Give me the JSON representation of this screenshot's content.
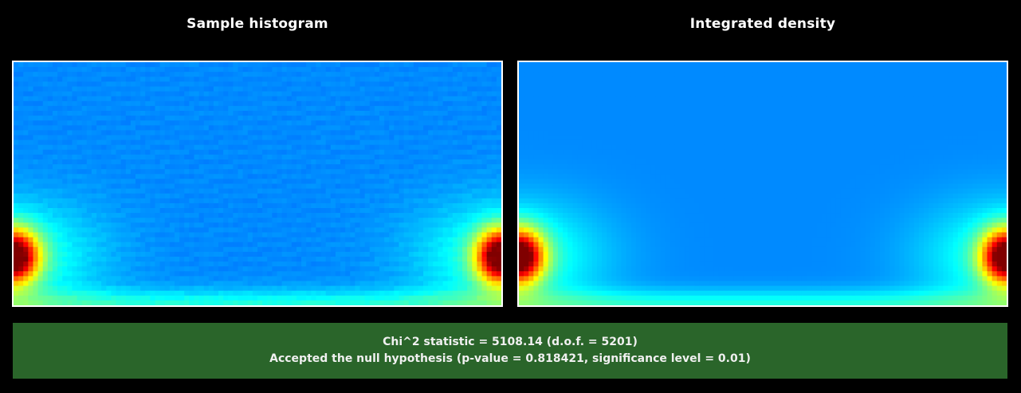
{
  "panels": {
    "left": {
      "title": "Sample histogram"
    },
    "right": {
      "title": "Integrated density"
    }
  },
  "result": {
    "statistic_line": "Chi^2 statistic = 5108.14 (d.o.f. = 5201)",
    "conclusion_line": "Accepted the null hypothesis (p-value = 0.818421, significance level = 0.01)",
    "background_color": "#2a652a"
  },
  "colors": {
    "heatmap_low": "#0000ff",
    "heatmap_high": "#ff0000",
    "frame": "#ffffff",
    "page_background": "#000000"
  }
}
